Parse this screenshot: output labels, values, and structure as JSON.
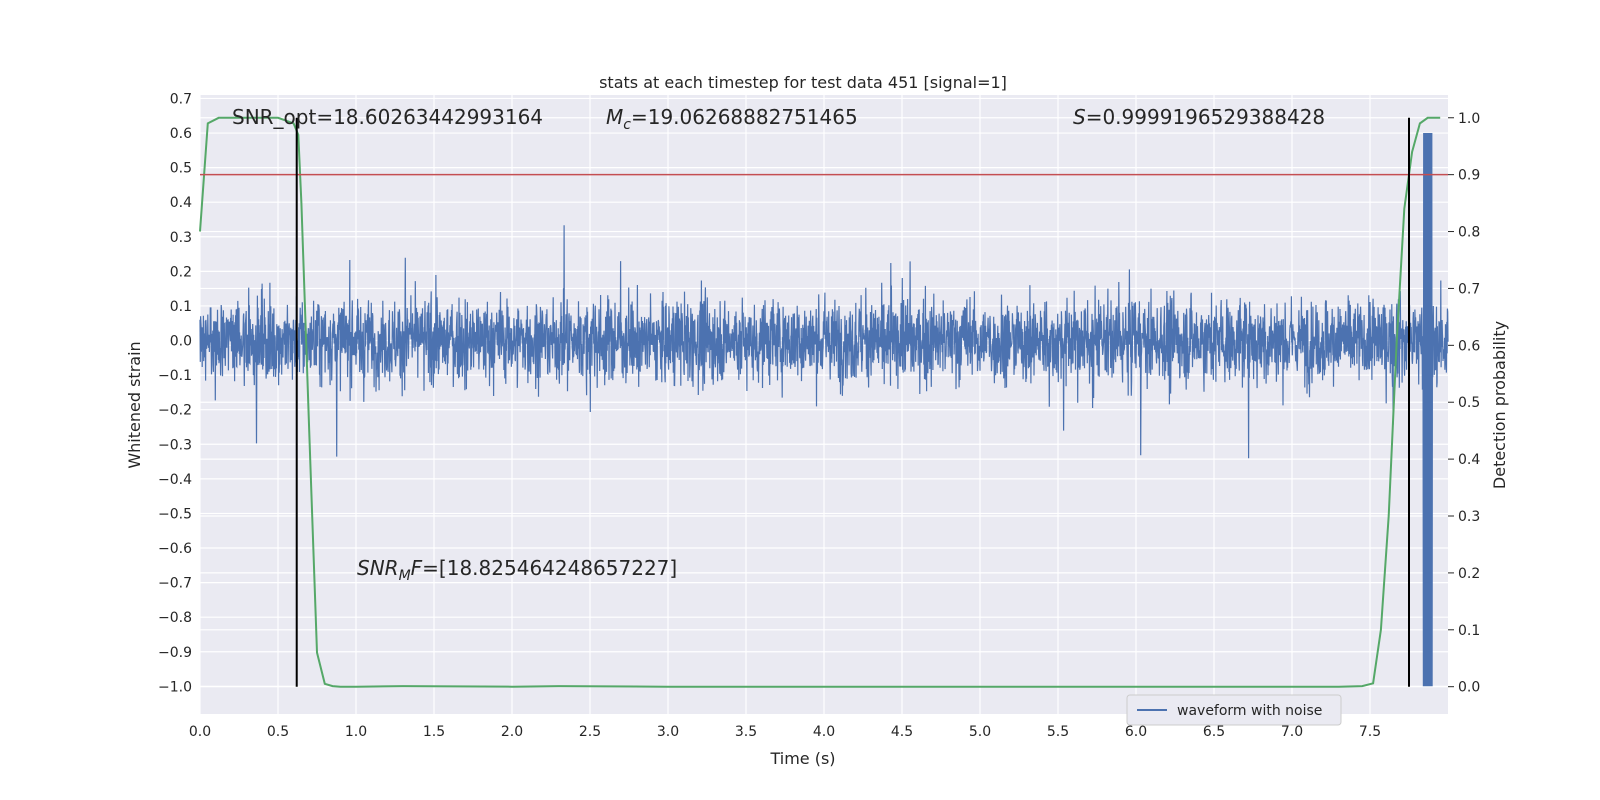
{
  "chart_data": {
    "type": "line",
    "title": "stats at each timestep for test data 451 [signal=1]",
    "xlabel": "Time (s)",
    "ylabel": "Whitened strain",
    "y2label": "Detection probability",
    "xlim": [
      0.0,
      8.0
    ],
    "ylim": [
      -1.08,
      0.71
    ],
    "y2lim": [
      -0.048,
      1.04
    ],
    "grid": true,
    "legend_placement": "lower-right",
    "xticks": [
      "0.0",
      "0.5",
      "1.0",
      "1.5",
      "2.0",
      "2.5",
      "3.0",
      "3.5",
      "4.0",
      "4.5",
      "5.0",
      "5.5",
      "6.0",
      "6.5",
      "7.0",
      "7.5"
    ],
    "xtick_values": [
      0.0,
      0.5,
      1.0,
      1.5,
      2.0,
      2.5,
      3.0,
      3.5,
      4.0,
      4.5,
      5.0,
      5.5,
      6.0,
      6.5,
      7.0,
      7.5
    ],
    "yticks": [
      "0.7",
      "0.6",
      "0.5",
      "0.4",
      "0.3",
      "0.2",
      "0.1",
      "0.0",
      "−0.1",
      "−0.2",
      "−0.3",
      "−0.4",
      "−0.5",
      "−0.6",
      "−0.7",
      "−0.8",
      "−0.9",
      "−1.0"
    ],
    "ytick_values": [
      0.7,
      0.6,
      0.5,
      0.4,
      0.3,
      0.2,
      0.1,
      0.0,
      -0.1,
      -0.2,
      -0.3,
      -0.4,
      -0.5,
      -0.6,
      -0.7,
      -0.8,
      -0.9,
      -1.0
    ],
    "y2ticks": [
      "1.0",
      "0.9",
      "0.8",
      "0.7",
      "0.6",
      "0.5",
      "0.4",
      "0.3",
      "0.2",
      "0.1",
      "0.0"
    ],
    "y2tick_values": [
      1.0,
      0.9,
      0.8,
      0.7,
      0.6,
      0.5,
      0.4,
      0.3,
      0.2,
      0.1,
      0.0
    ],
    "series": [
      {
        "name": "waveform with noise",
        "axis": "left",
        "color": "#4c72b0",
        "description_range": [
          -0.35,
          0.4
        ],
        "chirp_time": 7.87,
        "chirp_min": -1.0
      },
      {
        "axis": "right",
        "color": "#55a868",
        "x": [
          0.0,
          0.05,
          0.12,
          0.2,
          0.3,
          0.4,
          0.5,
          0.55,
          0.6,
          0.63,
          0.65,
          0.7,
          0.75,
          0.8,
          0.85,
          0.9,
          1.0,
          1.3,
          2.0,
          2.3,
          3.0,
          4.0,
          5.0,
          6.0,
          7.0,
          7.3,
          7.45,
          7.52,
          7.57,
          7.62,
          7.67,
          7.72,
          7.77,
          7.82,
          7.87,
          7.92,
          7.95
        ],
        "values": [
          0.8,
          0.99,
          1.0,
          1.0,
          1.0,
          1.0,
          1.0,
          0.995,
          0.99,
          0.97,
          0.85,
          0.45,
          0.06,
          0.005,
          0.001,
          0.0,
          0.0,
          0.001,
          0.0,
          0.001,
          0.0,
          0.0,
          0.0,
          0.0,
          0.0,
          0.0,
          0.001,
          0.006,
          0.1,
          0.3,
          0.6,
          0.84,
          0.94,
          0.99,
          1.0,
          1.0,
          1.0
        ]
      }
    ],
    "threshold_line": {
      "axis": "right",
      "value": 0.9,
      "color": "#c44e52"
    },
    "vlines": [
      {
        "x": 0.62,
        "from": 0.0,
        "to": 1.0,
        "axis": "right",
        "color": "#000000"
      },
      {
        "x": 7.75,
        "from": 0.0,
        "to": 1.0,
        "axis": "right",
        "color": "#000000"
      }
    ],
    "annotations": {
      "snr_opt": "SNR_opt=18.60263442993164",
      "mc_symbol": "M",
      "mc_sub": "c",
      "mc_value": "=19.06268882751465",
      "s_symbol": "S",
      "s_value": "=0.9999196529388428",
      "snrmf_symbol": "SNR",
      "snrmf_sub": "M",
      "snrmf_f": "F",
      "snrmf_value": "=[18.825464248657227]"
    }
  }
}
